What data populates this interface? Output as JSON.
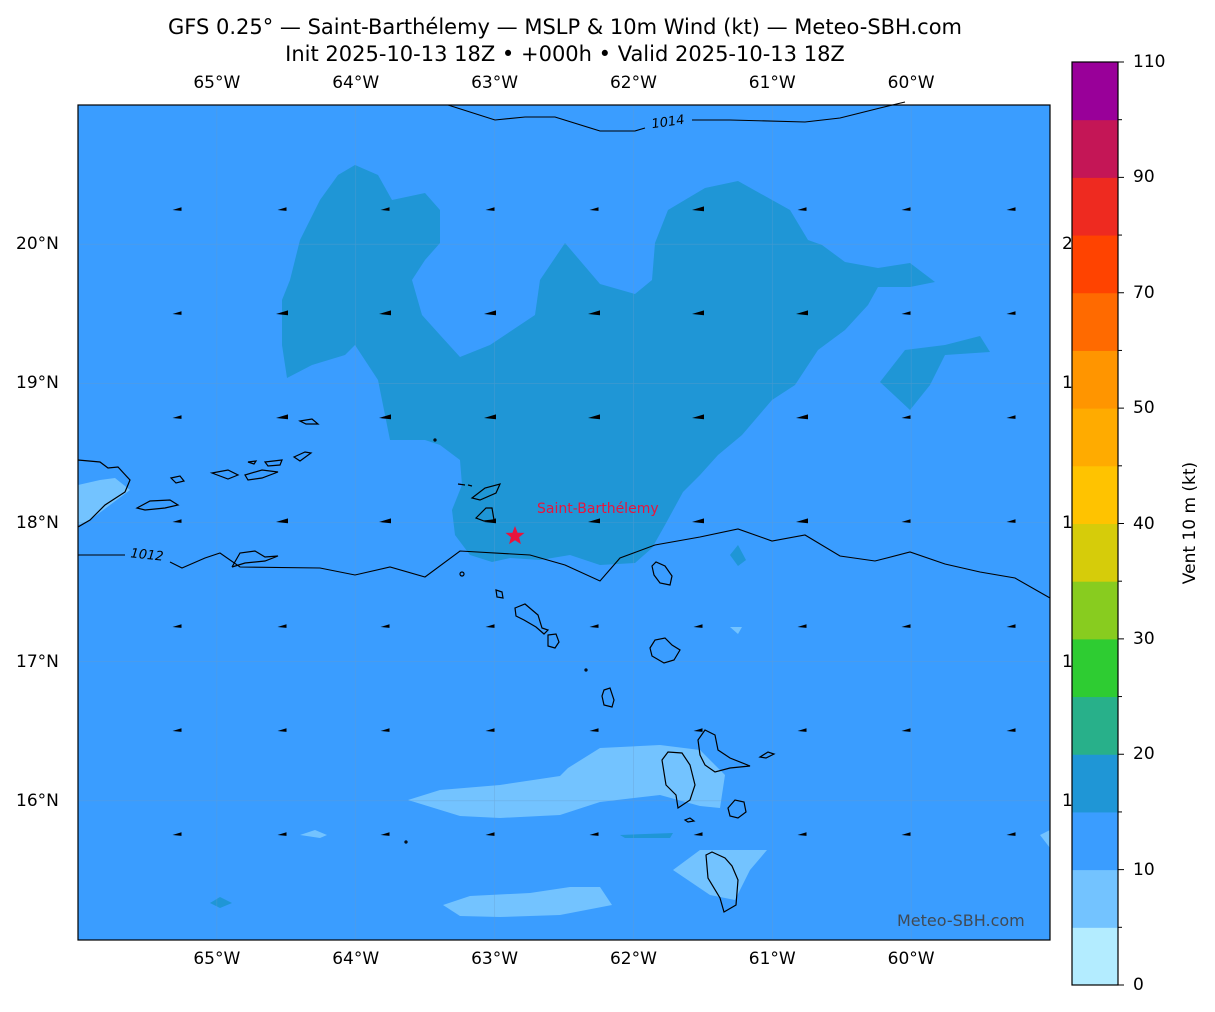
{
  "title": {
    "line1": "GFS 0.25° — Saint-Barthélemy — MSLP & 10m Wind (kt) — Meteo-SBH.com",
    "line2": "Init 2025-10-13 18Z • +000h • Valid 2025-10-13 18Z"
  },
  "map": {
    "lon_range": [
      -66,
      -59
    ],
    "lat_range": [
      15,
      21
    ],
    "lon_labels": [
      {
        "lon": -65,
        "label": "65°W"
      },
      {
        "lon": -64,
        "label": "64°W"
      },
      {
        "lon": -63,
        "label": "63°W"
      },
      {
        "lon": -62,
        "label": "62°W"
      },
      {
        "lon": -61,
        "label": "61°W"
      },
      {
        "lon": -60,
        "label": "60°W"
      }
    ],
    "lat_labels": [
      {
        "lat": 20,
        "label": "20°N"
      },
      {
        "lat": 19,
        "label": "19°N"
      },
      {
        "lat": 18,
        "label": "18°N"
      },
      {
        "lat": 17,
        "label": "17°N"
      },
      {
        "lat": 16,
        "label": "16°N"
      }
    ],
    "isobars": [
      {
        "value": 1014,
        "label": "1014"
      },
      {
        "value": 1012,
        "label": "1012"
      }
    ],
    "place": {
      "name": "Saint-Barthélemy",
      "lon": -62.85,
      "lat": 17.9,
      "color": "#e8143c"
    },
    "wind_direction": "easterly",
    "watermark": "Meteo-SBH.com"
  },
  "colorbar": {
    "label": "Vent 10 m (kt)",
    "levels": [
      0,
      5,
      10,
      15,
      20,
      25,
      30,
      35,
      40,
      45,
      50,
      60,
      70,
      80,
      90,
      100,
      110
    ],
    "colors": [
      "#b3ecff",
      "#73c3ff",
      "#3a9dff",
      "#1f96d6",
      "#28b08a",
      "#2ecc32",
      "#88cc1f",
      "#d6cc0a",
      "#ffc300",
      "#ffab00",
      "#ff9500",
      "#ff6a00",
      "#ff4300",
      "#ee2a20",
      "#c41656",
      "#990099"
    ],
    "tick_labels": [
      "0",
      "10",
      "20",
      "30",
      "40",
      "50",
      "70",
      "90",
      "110"
    ]
  }
}
